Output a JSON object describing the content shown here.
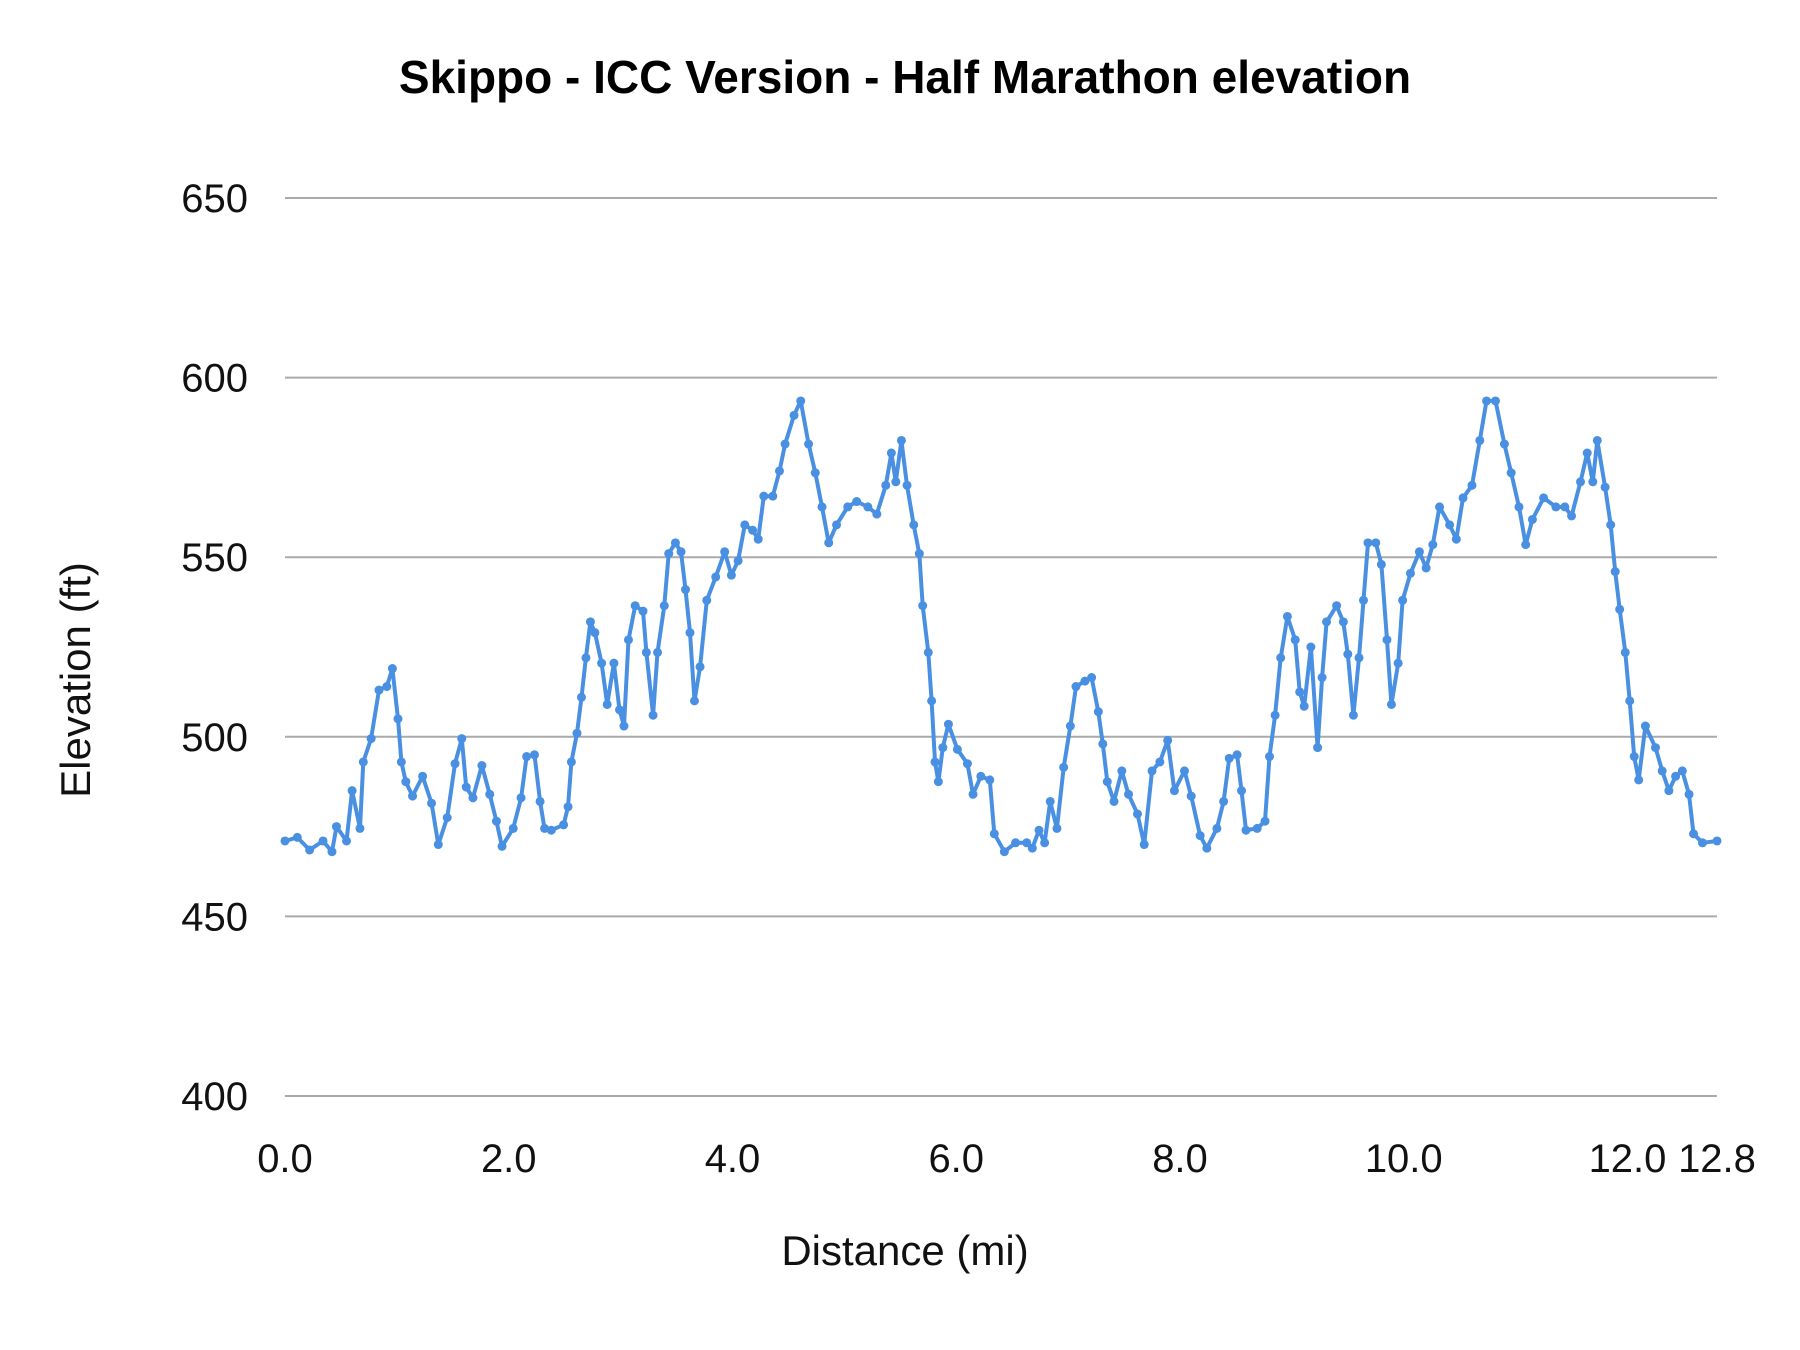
{
  "chart_data": {
    "type": "line",
    "title": "Skippo - ICC Version - Half Marathon elevation",
    "xlabel": "Distance (mi)",
    "ylabel": "Elevation (ft)",
    "xlim": [
      0,
      12.8
    ],
    "ylim": [
      400,
      650
    ],
    "xticks": [
      "0.0",
      "2.0",
      "4.0",
      "6.0",
      "8.0",
      "10.0",
      "12.0",
      "12.8"
    ],
    "yticks": [
      "400",
      "450",
      "500",
      "550",
      "600",
      "650"
    ],
    "grid": true,
    "line_color": "#4a90e2",
    "markers": true,
    "series": [
      {
        "x": [
          0,
          0.11,
          0.22,
          0.34,
          0.42,
          0.46,
          0.55,
          0.6,
          0.67,
          0.7,
          0.77,
          0.84,
          0.91,
          0.96,
          1.01,
          1.04,
          1.08,
          1.14,
          1.23,
          1.31,
          1.37,
          1.45,
          1.52,
          1.58,
          1.62,
          1.68,
          1.76,
          1.83,
          1.89,
          1.94,
          2.04,
          2.11,
          2.16,
          2.23,
          2.28,
          2.32,
          2.38,
          2.49,
          2.53,
          2.56,
          2.61,
          2.65,
          2.69,
          2.73,
          2.77,
          2.83,
          2.88,
          2.94,
          2.99,
          3.03,
          3.07,
          3.13,
          3.2,
          3.23,
          3.29,
          3.33,
          3.39,
          3.43,
          3.49,
          3.54,
          3.58,
          3.62,
          3.66,
          3.71,
          3.77,
          3.85,
          3.93,
          3.99,
          4.05,
          4.11,
          4.18,
          4.23,
          4.28,
          4.36,
          4.42,
          4.47,
          4.55,
          4.61,
          4.68,
          4.74,
          4.8,
          4.86,
          4.93,
          5.03,
          5.11,
          5.21,
          5.29,
          5.37,
          5.42,
          5.46,
          5.51,
          5.56,
          5.62,
          5.67,
          5.7,
          5.75,
          5.78,
          5.81,
          5.84,
          5.88,
          5.93,
          6.01,
          6.1,
          6.15,
          6.22,
          6.3,
          6.34,
          6.43,
          6.53,
          6.63,
          6.68,
          6.74,
          6.79,
          6.84,
          6.9,
          6.96,
          7.02,
          7.07,
          7.15,
          7.21,
          7.27,
          7.31,
          7.35,
          7.41,
          7.48,
          7.54,
          7.62,
          7.68,
          7.75,
          7.82,
          7.89,
          7.95,
          8.04,
          8.1,
          8.18,
          8.24,
          8.33,
          8.39,
          8.44,
          8.51,
          8.55,
          8.59,
          8.69,
          8.76,
          8.8,
          8.85,
          8.9,
          8.96,
          9.03,
          9.07,
          9.11,
          9.17,
          9.23,
          9.27,
          9.31,
          9.4,
          9.46,
          9.5,
          9.55,
          9.6,
          9.64,
          9.68,
          9.75,
          9.8,
          9.85,
          9.89,
          9.95,
          9.99,
          10.06,
          10.14,
          10.2,
          10.26,
          10.32,
          10.41,
          10.47,
          10.53,
          10.61,
          10.68,
          10.74,
          10.82,
          10.9,
          10.96,
          11.03,
          11.09,
          11.15,
          11.25,
          11.36,
          11.44,
          11.5,
          11.58,
          11.64,
          11.69,
          11.73,
          11.8,
          11.85,
          11.89,
          11.93,
          11.98,
          12.02,
          12.06,
          12.1,
          12.16,
          12.25,
          12.31,
          12.37,
          12.43,
          12.49,
          12.55,
          12.59,
          12.67,
          12.8
        ],
        "y": [
          471,
          472,
          468.5,
          471,
          468,
          475,
          471,
          485,
          474.5,
          493,
          499.5,
          513,
          514,
          519,
          505,
          493,
          487.5,
          483.5,
          489,
          481.5,
          470,
          477.5,
          492.5,
          499.5,
          486,
          483,
          492,
          484,
          476.5,
          469.5,
          474.5,
          483,
          494.5,
          495,
          482,
          474.5,
          474,
          475.5,
          480.5,
          493,
          501,
          511,
          522,
          532,
          529,
          520.5,
          509,
          520.5,
          507.5,
          503,
          527,
          536.5,
          535,
          523.5,
          506,
          523.5,
          536.5,
          551,
          554,
          551.5,
          541,
          529,
          510,
          519.5,
          538,
          544.5,
          551.5,
          545,
          549,
          559,
          557.5,
          555,
          567,
          567,
          574,
          581.5,
          589.5,
          593.5,
          581.5,
          573.5,
          564,
          554,
          559,
          564,
          565.5,
          564,
          562,
          570,
          579,
          571,
          582.5,
          570,
          559,
          551,
          536.5,
          523.5,
          510,
          493,
          487.5,
          497,
          503.5,
          496.5,
          492.5,
          484,
          489,
          488,
          473,
          468,
          470.5,
          470.5,
          469,
          474,
          470.5,
          482,
          474.5,
          491.5,
          503,
          514,
          515.5,
          516.5,
          507,
          498,
          487.5,
          482,
          490.5,
          484,
          478.5,
          470,
          490.5,
          493,
          499,
          485,
          490.5,
          483.5,
          472.5,
          469,
          474.5,
          482,
          494,
          495,
          485,
          474,
          474.5,
          476.5,
          494.5,
          506,
          522,
          533.5,
          527,
          512.5,
          508.5,
          525,
          497,
          516.5,
          532,
          536.5,
          532,
          523,
          506,
          522,
          538,
          554,
          554,
          548,
          527,
          509,
          520.5,
          538,
          545.5,
          551.5,
          547,
          553.5,
          564,
          559,
          555,
          566.5,
          570,
          582.5,
          593.5,
          593.5,
          581.5,
          573.5,
          564,
          553.5,
          560.5,
          566.5,
          564,
          564,
          561.5,
          571,
          579,
          571,
          582.5,
          569.5,
          559,
          546,
          535.5,
          523.5,
          510,
          494.5,
          488,
          503,
          497,
          490.5,
          485,
          489,
          490.5,
          484,
          473,
          470.5,
          471
        ]
      }
    ]
  }
}
